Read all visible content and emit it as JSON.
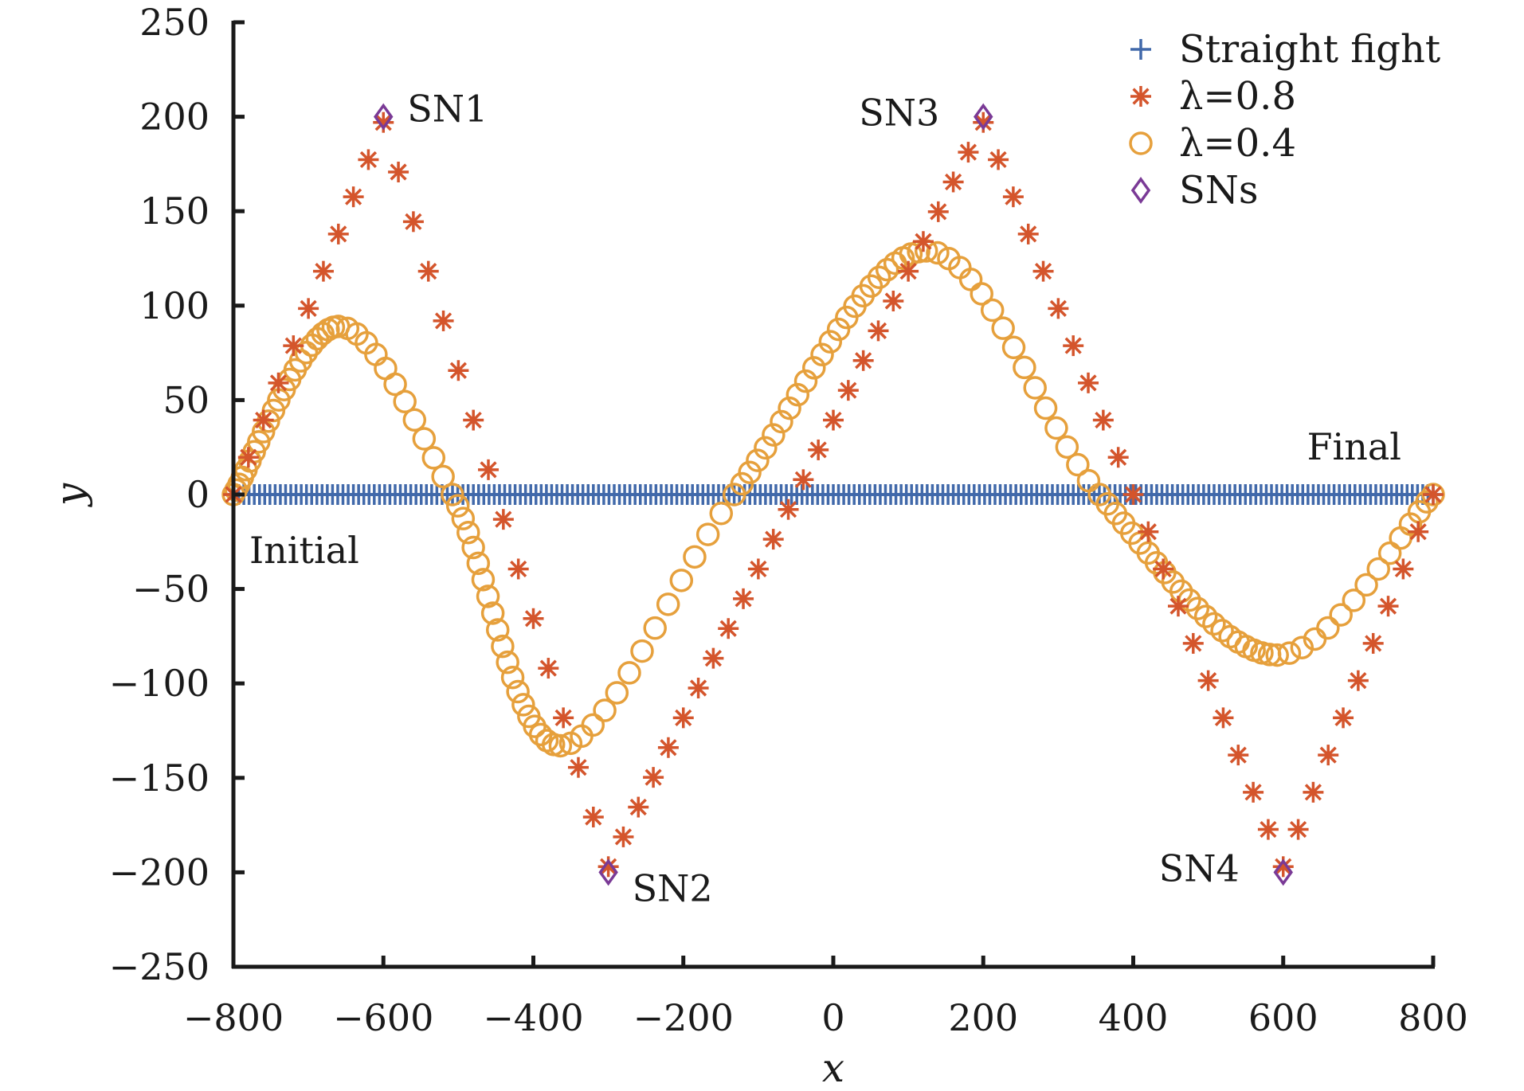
{
  "chart_data": {
    "type": "scatter",
    "title": "",
    "xlabel": "x",
    "ylabel": "y",
    "xlim": [
      -800,
      800
    ],
    "ylim": [
      -250,
      250
    ],
    "xticks": [
      -800,
      -600,
      -400,
      -200,
      0,
      200,
      400,
      600,
      800
    ],
    "xtick_labels": [
      "−800",
      "−600",
      "−400",
      "−200",
      "0",
      "200",
      "400",
      "600",
      "800"
    ],
    "yticks": [
      250,
      200,
      150,
      100,
      50,
      0,
      -50,
      -100,
      -150,
      -200,
      -250
    ],
    "ytick_labels": [
      "250",
      "200",
      "150",
      "100",
      "50",
      "0",
      "−50",
      "−100",
      "−150",
      "−200",
      "−250"
    ],
    "grid": false,
    "legend_position": "top-right",
    "series": [
      {
        "name": "Straight fight",
        "marker": "plus",
        "color": "#4169aa",
        "x_range": [
          -800,
          800
        ],
        "y_constant": 0,
        "point_count": 231
      },
      {
        "name": "λ=0.8",
        "marker": "asterisk",
        "color": "#d4552c",
        "anchors": [
          [
            -800,
            0
          ],
          [
            -600,
            197
          ],
          [
            -300,
            -197
          ],
          [
            200,
            197
          ],
          [
            600,
            -197
          ],
          [
            800,
            0
          ]
        ],
        "steps_per_segment": [
          10,
          15,
          25,
          20,
          10
        ]
      },
      {
        "name": "λ=0.4",
        "marker": "circle",
        "color": "#e6a03c",
        "anchors": [
          [
            -800,
            0
          ],
          [
            -660,
            89
          ],
          [
            -508,
            0
          ],
          [
            -364,
            -133
          ],
          [
            -132,
            0
          ],
          [
            124,
            129
          ],
          [
            355,
            0
          ],
          [
            592,
            -85
          ],
          [
            800,
            0
          ]
        ],
        "steps_per_segment": [
          22,
          12,
          20,
          14,
          24,
          16,
          22,
          14
        ]
      },
      {
        "name": "SNs",
        "marker": "diamond",
        "color": "#7a3a96",
        "points": [
          [
            -600,
            200
          ],
          [
            -300,
            -200
          ],
          [
            200,
            200
          ],
          [
            600,
            -200
          ]
        ]
      }
    ],
    "annotations": [
      {
        "text": "SN1",
        "x": -600,
        "y": 200,
        "anchor": "right"
      },
      {
        "text": "SN2",
        "x": -300,
        "y": -200,
        "anchor": "right"
      },
      {
        "text": "SN3",
        "x": 200,
        "y": 200,
        "anchor": "left"
      },
      {
        "text": "SN4",
        "x": 600,
        "y": -200,
        "anchor": "left"
      },
      {
        "text": "Initial",
        "x": -800,
        "y": 0,
        "anchor": "below"
      },
      {
        "text": "Final",
        "x": 800,
        "y": 0,
        "anchor": "above"
      }
    ]
  }
}
